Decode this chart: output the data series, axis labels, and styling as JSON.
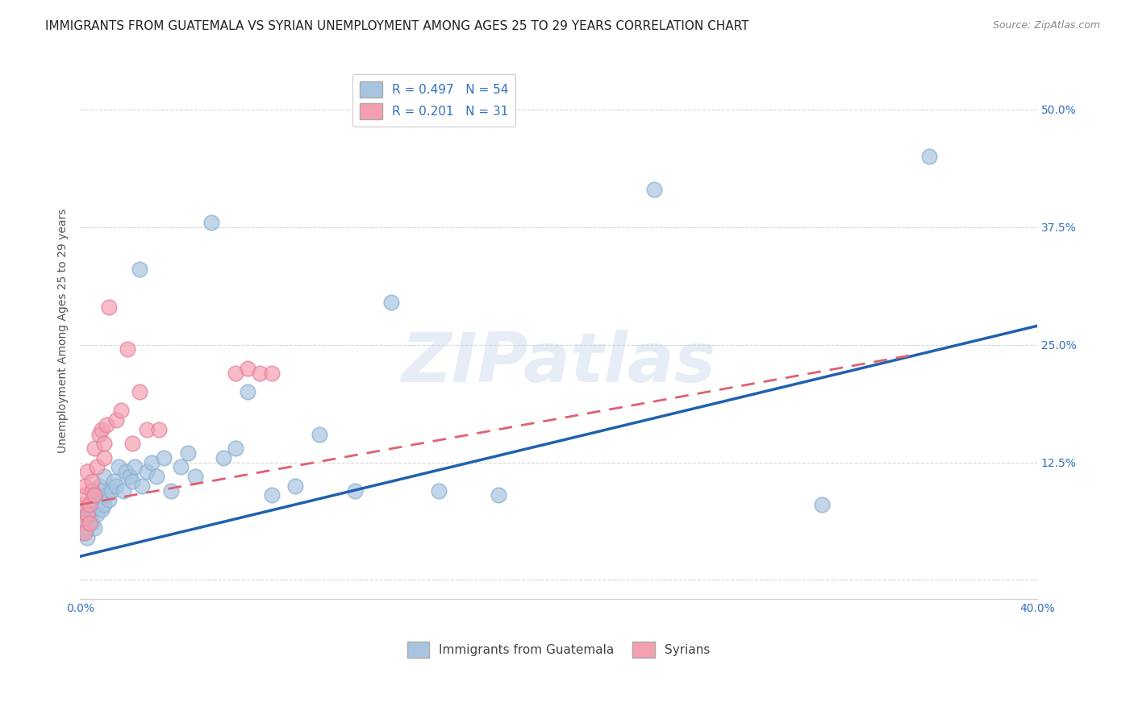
{
  "title": "IMMIGRANTS FROM GUATEMALA VS SYRIAN UNEMPLOYMENT AMONG AGES 25 TO 29 YEARS CORRELATION CHART",
  "source": "Source: ZipAtlas.com",
  "ylabel": "Unemployment Among Ages 25 to 29 years",
  "xlim": [
    0.0,
    0.4
  ],
  "ylim": [
    -0.02,
    0.55
  ],
  "yticks": [
    0.0,
    0.125,
    0.25,
    0.375,
    0.5
  ],
  "ytick_labels": [
    "",
    "12.5%",
    "25.0%",
    "37.5%",
    "50.0%"
  ],
  "xticks": [
    0.0,
    0.1,
    0.2,
    0.3,
    0.4
  ],
  "xtick_labels": [
    "0.0%",
    "",
    "",
    "",
    "40.0%"
  ],
  "guatemala_R": 0.497,
  "guatemala_N": 54,
  "syria_R": 0.201,
  "syria_N": 31,
  "guatemala_color": "#a8c4e0",
  "syria_color": "#f4a0b0",
  "guatemala_line_color": "#2060b0",
  "syria_line_color": "#e06070",
  "background_color": "#ffffff",
  "grid_color": "#cccccc",
  "watermark": "ZIPatlas",
  "title_fontsize": 11,
  "axis_label_fontsize": 10,
  "tick_fontsize": 10,
  "legend_fontsize": 11,
  "guatemala_x": [
    0.001,
    0.002,
    0.002,
    0.003,
    0.003,
    0.003,
    0.004,
    0.004,
    0.005,
    0.005,
    0.005,
    0.006,
    0.006,
    0.007,
    0.008,
    0.008,
    0.009,
    0.01,
    0.01,
    0.011,
    0.012,
    0.013,
    0.014,
    0.015,
    0.016,
    0.018,
    0.019,
    0.021,
    0.022,
    0.023,
    0.025,
    0.026,
    0.028,
    0.03,
    0.032,
    0.035,
    0.038,
    0.042,
    0.045,
    0.048,
    0.055,
    0.06,
    0.065,
    0.07,
    0.08,
    0.09,
    0.1,
    0.115,
    0.13,
    0.15,
    0.175,
    0.24,
    0.31,
    0.355
  ],
  "guatemala_y": [
    0.05,
    0.06,
    0.075,
    0.045,
    0.055,
    0.07,
    0.065,
    0.08,
    0.06,
    0.075,
    0.085,
    0.055,
    0.09,
    0.07,
    0.095,
    0.1,
    0.075,
    0.08,
    0.11,
    0.09,
    0.085,
    0.095,
    0.105,
    0.1,
    0.12,
    0.095,
    0.115,
    0.11,
    0.105,
    0.12,
    0.33,
    0.1,
    0.115,
    0.125,
    0.11,
    0.13,
    0.095,
    0.12,
    0.135,
    0.11,
    0.38,
    0.13,
    0.14,
    0.2,
    0.09,
    0.1,
    0.155,
    0.095,
    0.295,
    0.095,
    0.09,
    0.415,
    0.08,
    0.45
  ],
  "syria_x": [
    0.001,
    0.001,
    0.002,
    0.002,
    0.002,
    0.003,
    0.003,
    0.004,
    0.004,
    0.005,
    0.005,
    0.006,
    0.006,
    0.007,
    0.008,
    0.009,
    0.01,
    0.01,
    0.011,
    0.012,
    0.015,
    0.017,
    0.02,
    0.022,
    0.025,
    0.028,
    0.033,
    0.065,
    0.07,
    0.075,
    0.08
  ],
  "syria_y": [
    0.06,
    0.08,
    0.05,
    0.09,
    0.1,
    0.07,
    0.115,
    0.06,
    0.08,
    0.095,
    0.105,
    0.09,
    0.14,
    0.12,
    0.155,
    0.16,
    0.13,
    0.145,
    0.165,
    0.29,
    0.17,
    0.18,
    0.245,
    0.145,
    0.2,
    0.16,
    0.16,
    0.22,
    0.225,
    0.22,
    0.22
  ],
  "guatemala_line_x": [
    0.0,
    0.4
  ],
  "guatemala_line_y": [
    0.025,
    0.27
  ],
  "syria_line_x": [
    0.0,
    0.35
  ],
  "syria_line_y": [
    0.08,
    0.24
  ]
}
